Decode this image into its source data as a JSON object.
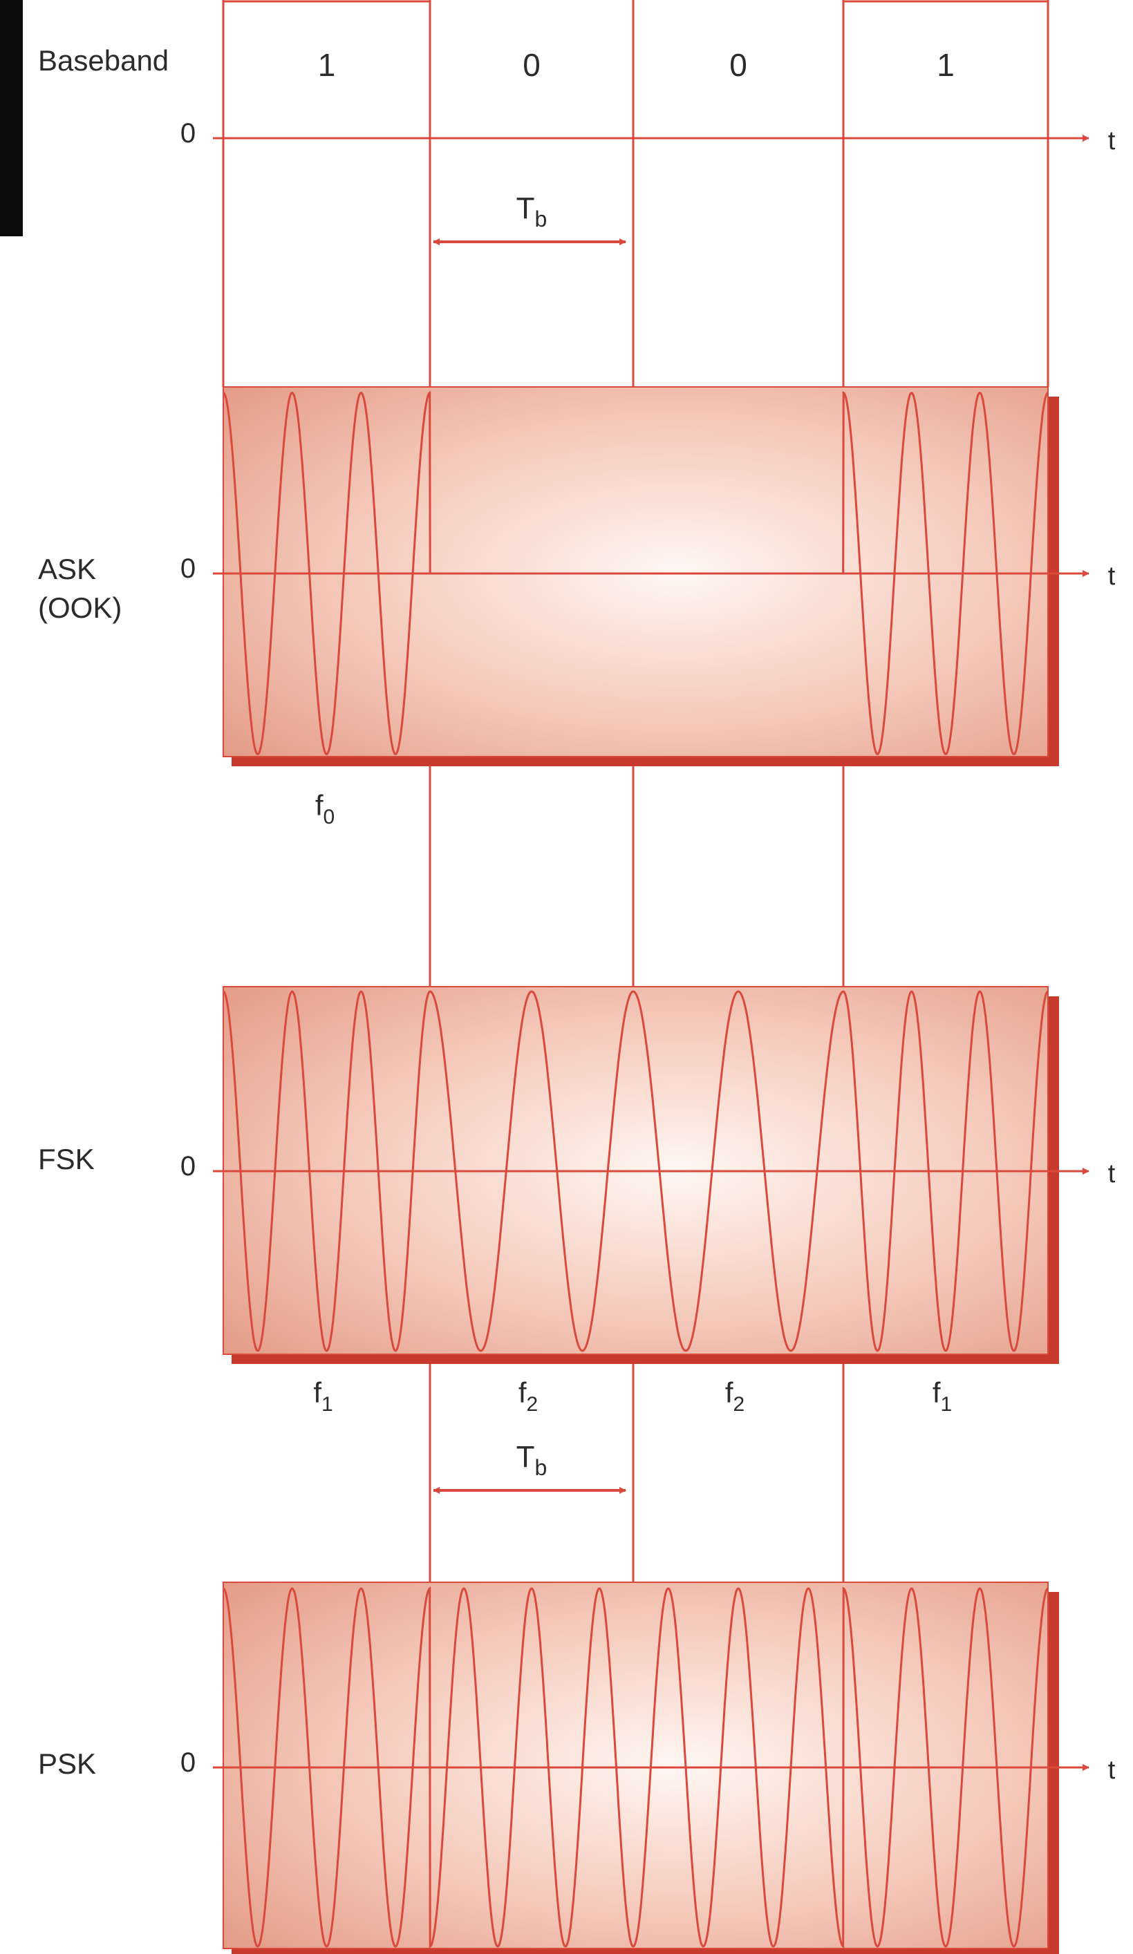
{
  "figure": {
    "rows": [
      {
        "id": "baseband",
        "label": "Baseband",
        "zero": "0"
      },
      {
        "id": "ask",
        "label": "ASK",
        "sublabel": "(OOK)",
        "zero": "0"
      },
      {
        "id": "fsk",
        "label": "FSK",
        "zero": "0"
      },
      {
        "id": "psk",
        "label": "PSK",
        "zero": "0"
      }
    ],
    "bits": [
      "1",
      "0",
      "0",
      "1"
    ],
    "time_axis_label": "t",
    "bit_period": {
      "symbol": "T",
      "subscript": "b"
    },
    "ask_carrier": {
      "symbol": "f",
      "subscript": "0"
    },
    "fsk_frequencies": [
      {
        "symbol": "f",
        "subscript": "1"
      },
      {
        "symbol": "f",
        "subscript": "2"
      },
      {
        "symbol": "f",
        "subscript": "2"
      },
      {
        "symbol": "f",
        "subscript": "1"
      }
    ],
    "modulation": {
      "cycles_per_bit_high": 3,
      "cycles_per_bit_low": 2,
      "psk_cycles_per_bit": 3
    },
    "colors": {
      "signal": "#d9493c",
      "panel_center": "#fff6f2",
      "panel_edge": "#e39a86",
      "panel_shadow": "#c8392e",
      "text": "#2b2b2b"
    }
  }
}
